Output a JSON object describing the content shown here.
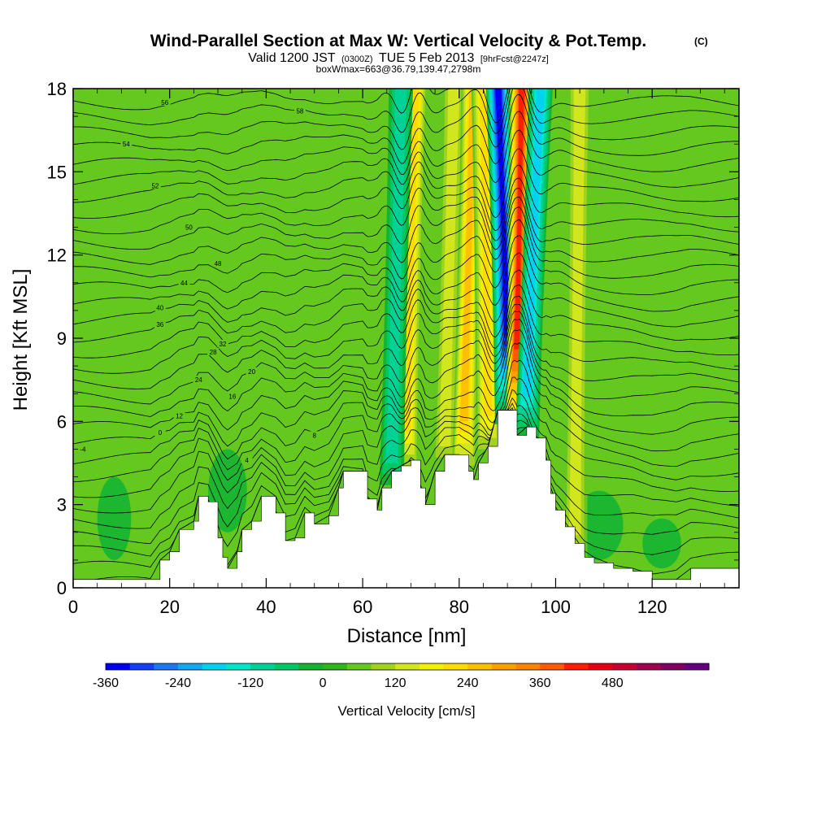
{
  "chart_data": {
    "type": "heatmap",
    "title": "Wind-Parallel Section at Max W: Vertical Velocity & Pot.Temp.",
    "copyright_mark": "(C)",
    "subtitle": {
      "valid_prefix": "Valid 1200 JST",
      "utc": "(0300Z)",
      "date": "TUE 5 Feb 2013",
      "forecast": "[9hrFcst@2247z]"
    },
    "box_info": "boxWmax=663@36.79,139.47,2798m",
    "xlabel": "Distance [nm]",
    "ylabel": "Height [Kft MSL]",
    "xlim": [
      0,
      138
    ],
    "ylim": [
      0,
      18
    ],
    "x_ticks": [
      0,
      20,
      40,
      60,
      80,
      100,
      120
    ],
    "y_ticks": [
      0,
      3,
      6,
      9,
      12,
      15,
      18
    ],
    "grid": false,
    "colorbar": {
      "label": "Vertical Velocity [cm/s]",
      "min": -360,
      "step": 40,
      "colors": [
        "#0000f5",
        "#1440f5",
        "#1e78f0",
        "#14a8f0",
        "#00d2f0",
        "#00e6c8",
        "#00d296",
        "#00c864",
        "#14b432",
        "#32b41e",
        "#64c81e",
        "#a0d21e",
        "#d2e61e",
        "#f0f000",
        "#ffdc00",
        "#ffc000",
        "#ffa000",
        "#ff8200",
        "#ff5a00",
        "#ff1e00",
        "#e60014",
        "#c80032",
        "#a00050",
        "#800064",
        "#640080"
      ],
      "tick_values": [
        -360,
        -240,
        -120,
        0,
        120,
        240,
        360,
        480
      ]
    },
    "terrain_profile_kft": [
      [
        0,
        0.3
      ],
      [
        16,
        0.3
      ],
      [
        18,
        1.0
      ],
      [
        20,
        1.3
      ],
      [
        22,
        2.1
      ],
      [
        25,
        2.4
      ],
      [
        26,
        3.3
      ],
      [
        28,
        3.1
      ],
      [
        30,
        1.8
      ],
      [
        31,
        1.1
      ],
      [
        32,
        0.7
      ],
      [
        34,
        1.3
      ],
      [
        35,
        2.1
      ],
      [
        37,
        2.4
      ],
      [
        39,
        3.3
      ],
      [
        42,
        2.7
      ],
      [
        44,
        1.7
      ],
      [
        46,
        1.8
      ],
      [
        48,
        2.7
      ],
      [
        50,
        2.3
      ],
      [
        53,
        2.6
      ],
      [
        55,
        3.6
      ],
      [
        56,
        4.2
      ],
      [
        60,
        4.2
      ],
      [
        61,
        3.2
      ],
      [
        63,
        2.8
      ],
      [
        64,
        3.6
      ],
      [
        66,
        4.2
      ],
      [
        68,
        4.4
      ],
      [
        70,
        4.6
      ],
      [
        72,
        3.6
      ],
      [
        73,
        3.0
      ],
      [
        75,
        4.2
      ],
      [
        77,
        4.8
      ],
      [
        80,
        4.8
      ],
      [
        82,
        4.2
      ],
      [
        83,
        3.9
      ],
      [
        84,
        4.5
      ],
      [
        86,
        5.1
      ],
      [
        88,
        6.4
      ],
      [
        91,
        6.4
      ],
      [
        92,
        5.5
      ],
      [
        94,
        5.8
      ],
      [
        96,
        5.4
      ],
      [
        98,
        4.6
      ],
      [
        99,
        3.4
      ],
      [
        100,
        2.8
      ],
      [
        102,
        2.2
      ],
      [
        104,
        1.6
      ],
      [
        106,
        1.1
      ],
      [
        108,
        0.9
      ],
      [
        112,
        0.7
      ],
      [
        116,
        0.6
      ],
      [
        120,
        0.3
      ],
      [
        125,
        0.3
      ],
      [
        128,
        0.7
      ],
      [
        138,
        0.7
      ]
    ],
    "velocity_bands_cm_s": [
      {
        "x_bottom": 69,
        "x_top": 71,
        "w": 200
      },
      {
        "x_bottom": 66,
        "x_top": 68,
        "w": -120
      },
      {
        "x_bottom": 77,
        "x_top": 79,
        "w": 120
      },
      {
        "x_bottom": 81,
        "x_top": 83,
        "w": 240
      },
      {
        "x_bottom": 86,
        "x_top": 85,
        "w": 200
      },
      {
        "x_bottom": 90,
        "x_top": 88,
        "w": -360
      },
      {
        "x_bottom": 92,
        "x_top": 93,
        "w": 420
      },
      {
        "x_bottom": 94,
        "x_top": 97,
        "w": -200
      },
      {
        "x_bottom": 104,
        "x_top": 105,
        "w": 120
      }
    ],
    "theta_contours": {
      "levels_from": -4,
      "levels_to": 58,
      "level_step": 2,
      "labels": [
        {
          "text": "-4",
          "x": 2,
          "y": 5.0
        },
        {
          "text": "0",
          "x": 18,
          "y": 5.6
        },
        {
          "text": "4",
          "x": 36,
          "y": 4.6
        },
        {
          "text": "8",
          "x": 50,
          "y": 5.5
        },
        {
          "text": "12",
          "x": 22,
          "y": 6.2
        },
        {
          "text": "16",
          "x": 33,
          "y": 6.9
        },
        {
          "text": "20",
          "x": 37,
          "y": 7.8
        },
        {
          "text": "24",
          "x": 26,
          "y": 7.5
        },
        {
          "text": "28",
          "x": 29,
          "y": 8.5
        },
        {
          "text": "32",
          "x": 31,
          "y": 8.8
        },
        {
          "text": "36",
          "x": 18,
          "y": 9.5
        },
        {
          "text": "40",
          "x": 18,
          "y": 10.1
        },
        {
          "text": "44",
          "x": 23,
          "y": 11.0
        },
        {
          "text": "48",
          "x": 30,
          "y": 11.7
        },
        {
          "text": "50",
          "x": 24,
          "y": 13.0
        },
        {
          "text": "52",
          "x": 17,
          "y": 14.5
        },
        {
          "text": "54",
          "x": 11,
          "y": 16.0
        },
        {
          "text": "56",
          "x": 19,
          "y": 17.5
        },
        {
          "text": "58",
          "x": 47,
          "y": 17.2
        }
      ]
    }
  }
}
